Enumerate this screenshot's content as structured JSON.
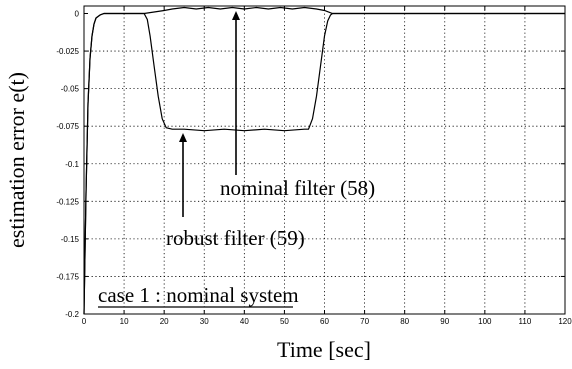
{
  "chart_data": {
    "type": "line",
    "xlabel": "Time [sec]",
    "ylabel": "estimation error e(t)",
    "xlim": [
      0,
      120
    ],
    "ylim": [
      -0.2,
      0.005
    ],
    "x_ticks": [
      0,
      10,
      20,
      30,
      40,
      50,
      60,
      70,
      80,
      90,
      100,
      110,
      120
    ],
    "y_ticks": [
      0,
      -0.025,
      -0.05,
      -0.075,
      -0.1,
      -0.125,
      -0.15,
      -0.175,
      -0.2
    ],
    "x_tick_labels": [
      "0",
      "10",
      "20",
      "30",
      "40",
      "50",
      "60",
      "70",
      "80",
      "90",
      "100",
      "110",
      "120"
    ],
    "y_tick_labels": [
      "0",
      "-0.025",
      "-0.05",
      "-0.075",
      "-0.1",
      "-0.125",
      "-0.15",
      "-0.175",
      "-0.2"
    ],
    "grid": true,
    "series": [
      {
        "x": [
          0,
          0.5,
          1,
          1.5,
          2,
          2.5,
          3,
          4,
          5,
          10,
          15,
          15.8,
          16.5,
          17.5,
          18.5,
          19.5,
          20.5,
          22,
          25,
          30,
          35,
          40,
          45,
          50,
          55,
          56,
          57,
          58,
          59,
          60,
          60.8,
          61.5,
          62,
          70,
          80,
          90,
          100,
          110,
          120
        ],
        "y": [
          -0.2,
          -0.12,
          -0.06,
          -0.03,
          -0.015,
          -0.007,
          -0.003,
          -0.001,
          0,
          0,
          0,
          -0.004,
          -0.015,
          -0.035,
          -0.055,
          -0.07,
          -0.076,
          -0.077,
          -0.077,
          -0.078,
          -0.077,
          -0.078,
          -0.077,
          -0.078,
          -0.077,
          -0.077,
          -0.07,
          -0.055,
          -0.035,
          -0.015,
          -0.005,
          -0.001,
          0,
          0,
          0,
          0,
          0,
          0,
          0
        ]
      },
      {
        "x": [
          0,
          0.5,
          1,
          1.5,
          2,
          2.5,
          3,
          4,
          5,
          10,
          15,
          20,
          22,
          25,
          28,
          31,
          34,
          37,
          40,
          43,
          46,
          49,
          52,
          55,
          58,
          60,
          62,
          70,
          80,
          90,
          100,
          110,
          120
        ],
        "y": [
          -0.2,
          -0.12,
          -0.06,
          -0.03,
          -0.015,
          -0.007,
          -0.003,
          -0.001,
          0,
          0,
          0,
          0.002,
          0.003,
          0.004,
          0.003,
          0.004,
          0.003,
          0.004,
          0.003,
          0.004,
          0.003,
          0.004,
          0.003,
          0.004,
          0.003,
          0.002,
          0,
          0,
          0,
          0,
          0,
          0,
          0
        ]
      }
    ],
    "annotations": [
      {
        "text": "nominal filter (58)"
      },
      {
        "text": "robust filter (59)"
      },
      {
        "text": "case 1 : nominal system"
      }
    ]
  }
}
